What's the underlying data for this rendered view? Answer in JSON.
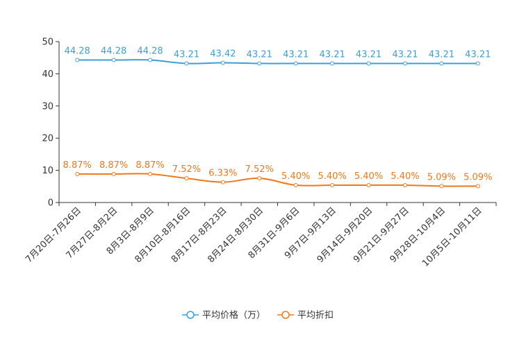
{
  "chart_data": {
    "type": "line",
    "title": "",
    "xlabel": "",
    "ylabel": "",
    "ylim": [
      0,
      50
    ],
    "yticks": [
      0,
      10,
      20,
      30,
      40,
      50
    ],
    "categories": [
      "7月20日-7月26日",
      "7月27日-8月2日",
      "8月3日-8月9日",
      "8月10日-8月16日",
      "8月17日-8月23日",
      "8月24日-8月30日",
      "8月31日-9月6日",
      "9月7日-9月13日",
      "9月14日-9月20日",
      "9月21日-9月27日",
      "9月28日-10月4日",
      "10月5日-10月11日"
    ],
    "series": [
      {
        "name": "平均价格（万）",
        "color": "#3b9fd5",
        "values": [
          44.28,
          44.28,
          44.28,
          43.21,
          43.42,
          43.21,
          43.21,
          43.21,
          43.21,
          43.21,
          43.21,
          43.21
        ],
        "labels": [
          "44.28",
          "44.28",
          "44.28",
          "43.21",
          "43.42",
          "43.21",
          "43.21",
          "43.21",
          "43.21",
          "43.21",
          "43.21",
          "43.21"
        ]
      },
      {
        "name": "平均折扣",
        "color": "#f07818",
        "values": [
          8.87,
          8.87,
          8.87,
          7.52,
          6.33,
          7.52,
          5.4,
          5.4,
          5.4,
          5.4,
          5.09,
          5.09
        ],
        "labels": [
          "8.87%",
          "8.87%",
          "8.87%",
          "7.52%",
          "6.33%",
          "7.52%",
          "5.40%",
          "5.40%",
          "5.40%",
          "5.40%",
          "5.09%",
          "5.09%"
        ]
      }
    ],
    "legend": "bottom-center",
    "grid": false
  }
}
